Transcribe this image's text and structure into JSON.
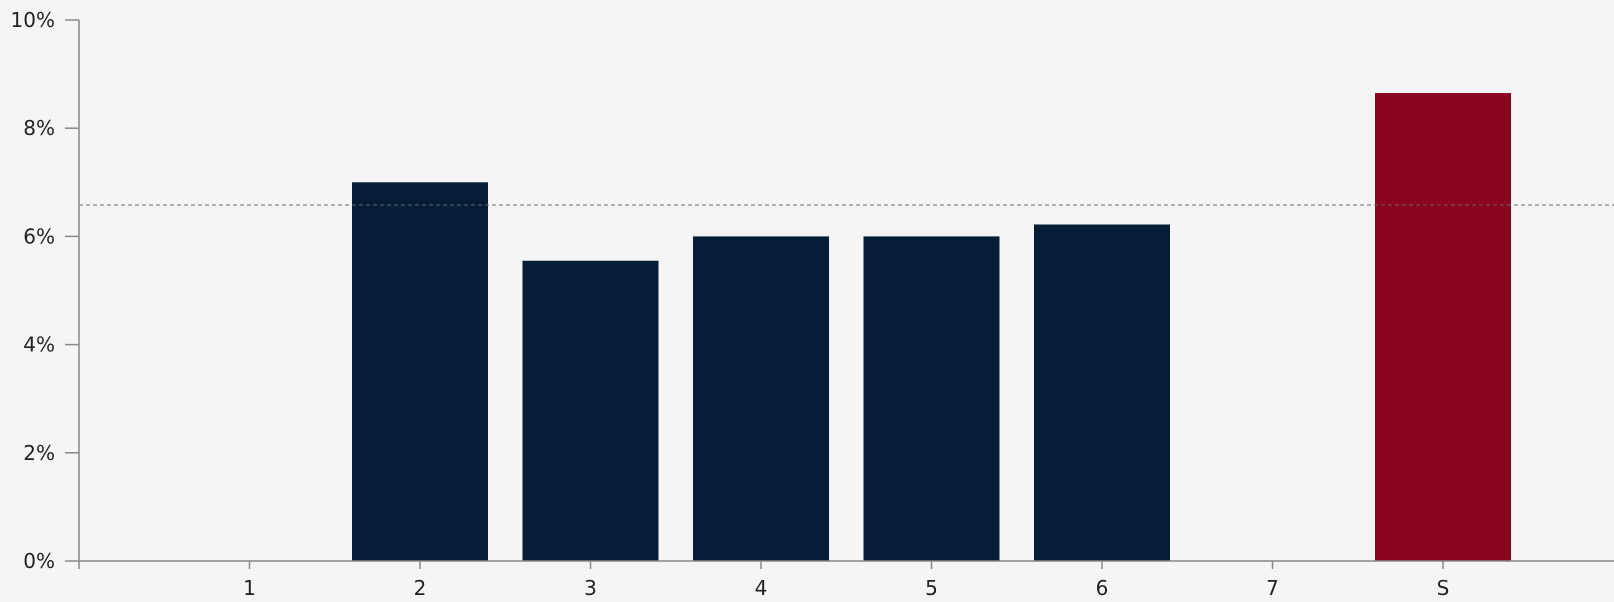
{
  "chart_data": {
    "type": "bar",
    "categories": [
      "1",
      "2",
      "3",
      "4",
      "5",
      "6",
      "7",
      "S"
    ],
    "values": [
      null,
      7.0,
      5.55,
      6.0,
      6.0,
      6.22,
      null,
      8.65
    ],
    "bar_colors": [
      "#061d38",
      "#061d38",
      "#061d38",
      "#061d38",
      "#061d38",
      "#061d38",
      "#061d38",
      "#8b0420"
    ],
    "reference_line": 6.58,
    "ylim": [
      0,
      10
    ],
    "yticks": [
      0,
      2,
      4,
      6,
      8,
      10
    ],
    "ytick_labels": [
      "0%",
      "2%",
      "4%",
      "6%",
      "8%",
      "10%"
    ],
    "grid": false,
    "title": "",
    "xlabel": "",
    "ylabel": ""
  },
  "colors": {
    "background": "#f5f5f5",
    "bar_default": "#061d38",
    "bar_highlight": "#8b0420",
    "axis": "#888888",
    "reference_line": "#666666"
  }
}
